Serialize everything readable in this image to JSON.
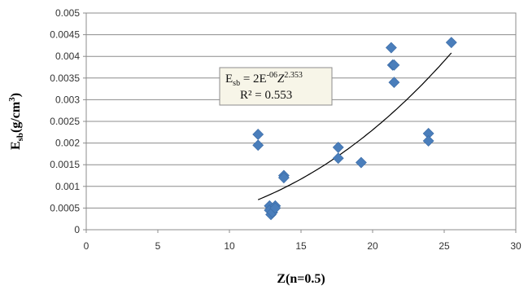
{
  "chart_data": {
    "type": "scatter",
    "xlabel": "Z(n=0.5)",
    "ylabel_main": "E",
    "ylabel_sub": "sb",
    "ylabel_unit": "(g/cm",
    "ylabel_unit_sup": "3",
    "ylabel_unit_close": ")",
    "xlim": [
      0,
      30
    ],
    "ylim": [
      0,
      0.005
    ],
    "x_ticks": [
      0,
      5,
      10,
      15,
      20,
      25,
      30
    ],
    "y_ticks": [
      "0",
      "0.0005",
      "0.001",
      "0.0015",
      "0.002",
      "0.0025",
      "0.003",
      "0.0035",
      "0.004",
      "0.0045",
      "0.005"
    ],
    "grid": "horizontal",
    "marker_color": "#4a7ebb",
    "trendline_color": "#000000",
    "points": [
      {
        "x": 12.0,
        "y": 0.0022
      },
      {
        "x": 12.0,
        "y": 0.00195
      },
      {
        "x": 12.8,
        "y": 0.00055
      },
      {
        "x": 12.8,
        "y": 0.00045
      },
      {
        "x": 12.9,
        "y": 0.00035
      },
      {
        "x": 13.0,
        "y": 0.0004
      },
      {
        "x": 13.2,
        "y": 0.00055
      },
      {
        "x": 13.2,
        "y": 0.0005
      },
      {
        "x": 13.8,
        "y": 0.00125
      },
      {
        "x": 13.8,
        "y": 0.0012
      },
      {
        "x": 17.6,
        "y": 0.0019
      },
      {
        "x": 17.6,
        "y": 0.00165
      },
      {
        "x": 19.2,
        "y": 0.00155
      },
      {
        "x": 21.3,
        "y": 0.0042
      },
      {
        "x": 21.4,
        "y": 0.0038
      },
      {
        "x": 21.5,
        "y": 0.0038
      },
      {
        "x": 21.5,
        "y": 0.0034
      },
      {
        "x": 23.9,
        "y": 0.00222
      },
      {
        "x": 23.9,
        "y": 0.00205
      },
      {
        "x": 25.5,
        "y": 0.00432
      }
    ],
    "trendline": {
      "type": "power",
      "coefficient": 2e-06,
      "exponent": 2.353,
      "x_range": [
        12.0,
        25.5
      ]
    },
    "equation": {
      "e_main": "E",
      "e_sub": "sb",
      "e_mid": " = 2E",
      "e_exp": "-06",
      "e_z": "Z",
      "e_z_exp": "2.353",
      "r2": "R² = 0.553"
    }
  }
}
